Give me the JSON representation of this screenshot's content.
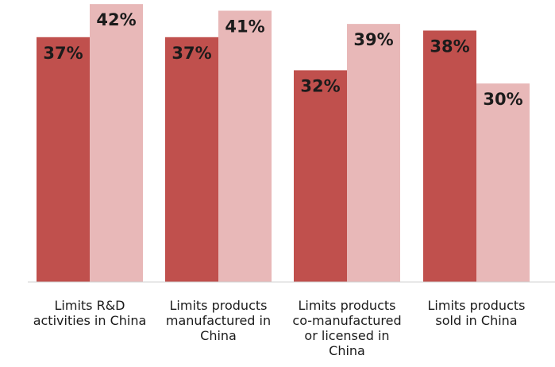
{
  "colors": {
    "series_1": "#c0504d",
    "series_2": "#e8b8b8",
    "baseline": "#d0d0d0",
    "text": "#1b1b1b"
  },
  "chart_data": {
    "type": "bar",
    "title": "",
    "xlabel": "",
    "ylabel": "",
    "ylim": [
      0,
      45
    ],
    "grid": false,
    "legend": "none",
    "categories": [
      [
        "Limits R&D",
        "activities in China"
      ],
      [
        "Limits products",
        "manufactured in",
        "China"
      ],
      [
        "Limits products",
        "co-manufactured",
        "or licensed in",
        "China"
      ],
      [
        "Limits products",
        "sold in China"
      ]
    ],
    "series": [
      {
        "values": [
          37,
          37,
          32,
          38
        ],
        "labels": [
          "37%",
          "37%",
          "32%",
          "38%"
        ],
        "color": "#c0504d"
      },
      {
        "values": [
          42,
          41,
          39,
          30
        ],
        "labels": [
          "42%",
          "41%",
          "39%",
          "30%"
        ],
        "color": "#e8b8b8"
      }
    ]
  }
}
